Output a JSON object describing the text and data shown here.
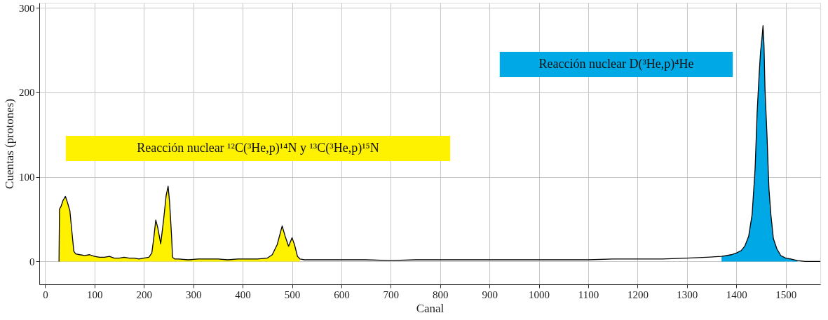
{
  "chart_data": {
    "type": "line",
    "xlabel": "Canal",
    "ylabel": "Cuentas (protones)",
    "xlim": [
      -12,
      1570
    ],
    "ylim": [
      -27,
      306
    ],
    "xticks": [
      0,
      100,
      200,
      300,
      400,
      500,
      600,
      700,
      800,
      900,
      1000,
      1100,
      1200,
      1300,
      1400,
      1500
    ],
    "yticks": [
      0,
      100,
      200,
      300
    ],
    "grid": true,
    "marker": "none",
    "line_style": "solid",
    "series": [
      {
        "type": "area",
        "color": "#fff200",
        "x": [
          28,
          29,
          32,
          36,
          41,
          45,
          50,
          55,
          58,
          62,
          70,
          80,
          90,
          100,
          110,
          120,
          130,
          140,
          150,
          160,
          170,
          180,
          190,
          200,
          210,
          216,
          220,
          224,
          228,
          234,
          240,
          245,
          249,
          252,
          256,
          258,
          262,
          270,
          290,
          310,
          330,
          350,
          370,
          390,
          410,
          430,
          450,
          460,
          470,
          480,
          486,
          493,
          500,
          505,
          511,
          516
        ],
        "values": [
          0,
          62,
          65,
          72,
          77,
          70,
          60,
          30,
          12,
          9,
          8,
          7,
          8,
          6,
          5,
          5,
          6,
          4,
          4,
          5,
          4,
          4,
          3,
          4,
          5,
          10,
          28,
          49,
          40,
          21,
          50,
          78,
          89,
          70,
          30,
          5,
          3,
          3,
          2,
          3,
          3,
          3,
          2,
          3,
          3,
          3,
          4,
          8,
          20,
          42,
          30,
          18,
          28,
          20,
          6,
          3
        ]
      },
      {
        "type": "area",
        "color": "#00a8e6",
        "x": [
          1370,
          1390,
          1400,
          1410,
          1417,
          1425,
          1432,
          1438,
          1442,
          1446,
          1449,
          1452,
          1454,
          1456,
          1458,
          1462,
          1466,
          1470,
          1475,
          1482,
          1490,
          1500,
          1510,
          1524
        ],
        "values": [
          6,
          8,
          10,
          13,
          18,
          30,
          56,
          110,
          175,
          220,
          248,
          265,
          279,
          255,
          204,
          150,
          86,
          55,
          27,
          15,
          7,
          4,
          3,
          1
        ]
      },
      {
        "color": "#000000",
        "x": [
          28,
          29,
          32,
          36,
          41,
          45,
          50,
          55,
          58,
          62,
          70,
          80,
          90,
          100,
          110,
          120,
          130,
          140,
          150,
          160,
          170,
          180,
          190,
          200,
          210,
          216,
          220,
          224,
          228,
          234,
          240,
          245,
          249,
          252,
          256,
          258,
          262,
          270,
          290,
          310,
          330,
          350,
          370,
          390,
          410,
          430,
          450,
          460,
          470,
          480,
          486,
          493,
          500,
          505,
          511,
          516,
          525,
          540,
          560,
          600,
          650,
          700,
          750,
          800,
          850,
          900,
          950,
          1000,
          1050,
          1100,
          1150,
          1200,
          1250,
          1300,
          1340,
          1370,
          1390,
          1400,
          1410,
          1417,
          1425,
          1432,
          1438,
          1442,
          1446,
          1449,
          1452,
          1454,
          1456,
          1458,
          1462,
          1466,
          1470,
          1475,
          1482,
          1490,
          1500,
          1510,
          1524,
          1540,
          1570
        ],
        "values": [
          0,
          62,
          65,
          72,
          77,
          70,
          60,
          30,
          12,
          9,
          8,
          7,
          8,
          6,
          5,
          5,
          6,
          4,
          4,
          5,
          4,
          4,
          3,
          4,
          5,
          10,
          28,
          49,
          40,
          21,
          50,
          78,
          89,
          70,
          30,
          5,
          3,
          3,
          2,
          3,
          3,
          3,
          2,
          3,
          3,
          3,
          4,
          8,
          20,
          42,
          30,
          18,
          28,
          20,
          6,
          3,
          2,
          2,
          2,
          2,
          2,
          1,
          2,
          2,
          2,
          2,
          2,
          2,
          2,
          2,
          3,
          3,
          3,
          4,
          5,
          6,
          8,
          10,
          13,
          18,
          30,
          56,
          110,
          175,
          220,
          248,
          265,
          279,
          255,
          204,
          150,
          86,
          55,
          27,
          15,
          7,
          4,
          3,
          1,
          0,
          0
        ]
      }
    ],
    "annotations": [
      "Reacción nuclear ¹²C(³He,p)¹⁴N  y  ¹³C(³He,p)¹⁵N",
      "Reacción nuclear D(³He,p)⁴He"
    ]
  }
}
